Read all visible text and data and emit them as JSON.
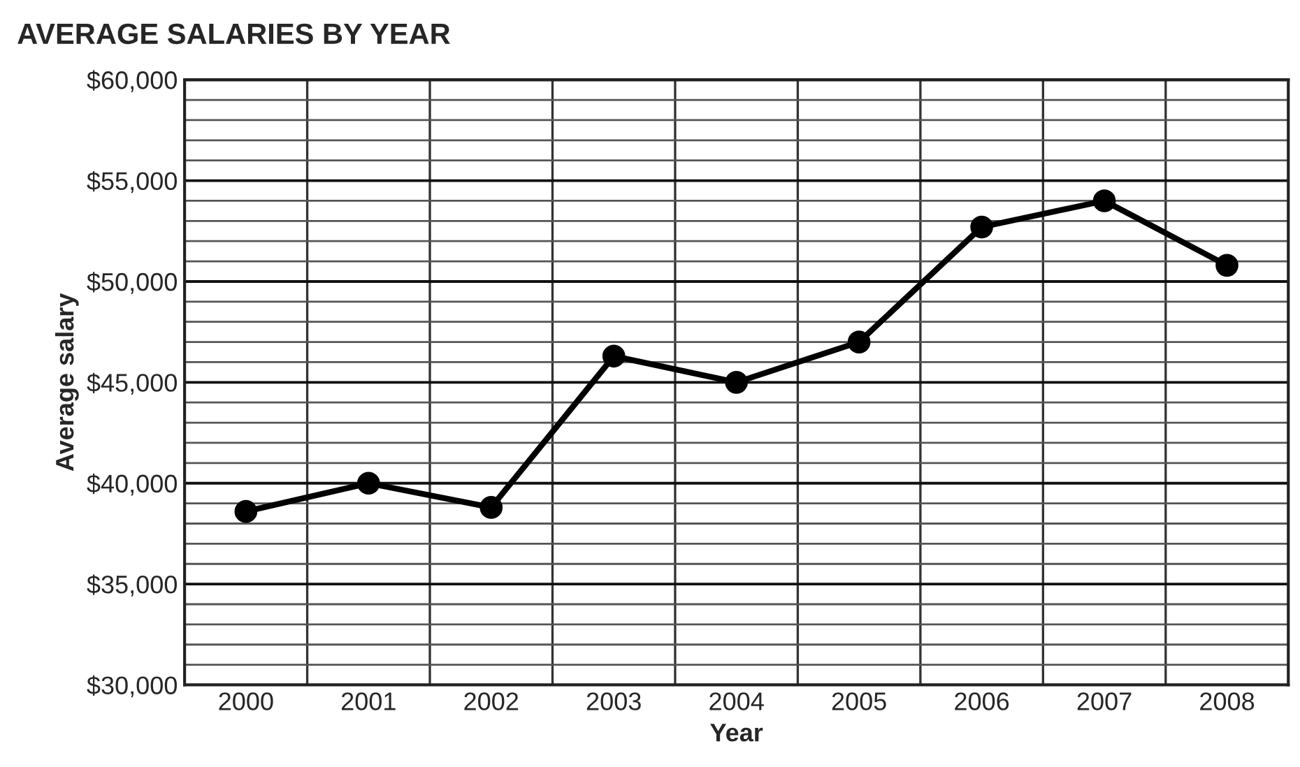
{
  "chart_data": {
    "type": "line",
    "title": "AVERAGE SALARIES BY YEAR",
    "xlabel": "Year",
    "ylabel": "Average salary",
    "categories": [
      "2000",
      "2001",
      "2002",
      "2003",
      "2004",
      "2005",
      "2006",
      "2007",
      "2008"
    ],
    "series": [
      {
        "color": "#000000",
        "values": [
          38600,
          40000,
          38800,
          46300,
          45000,
          47000,
          52700,
          54000,
          50800
        ]
      }
    ],
    "ylim": [
      30000,
      60000
    ],
    "yticks": [
      {
        "value": 30000,
        "label": "$30,000"
      },
      {
        "value": 35000,
        "label": "$35,000"
      },
      {
        "value": 40000,
        "label": "$40,000"
      },
      {
        "value": 45000,
        "label": "$45,000"
      },
      {
        "value": 50000,
        "label": "$50,000"
      },
      {
        "value": 55000,
        "label": "$55,000"
      },
      {
        "value": 60000,
        "label": "$60,000"
      }
    ],
    "grid": true,
    "marker": "circle",
    "line_style": "solid"
  }
}
